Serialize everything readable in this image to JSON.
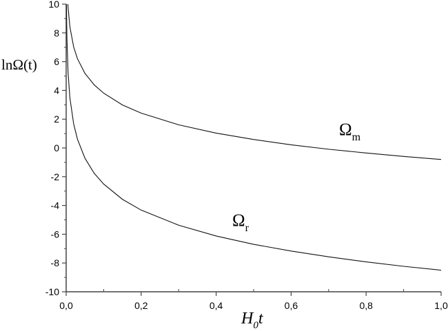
{
  "chart_data": {
    "type": "line",
    "title": "",
    "xlabel": "H0t",
    "xlabel_main": "H",
    "xlabel_sub": "0",
    "xlabel_tail": "t",
    "ylabel": "lnΩ(t)",
    "xlim": [
      0,
      1
    ],
    "ylim": [
      -10,
      10
    ],
    "x_ticks": [
      0,
      0.2,
      0.4,
      0.6,
      0.8,
      1.0
    ],
    "x_tick_labels": [
      "0,0",
      "0,2",
      "0,4",
      "0,6",
      "0,8",
      "1,0"
    ],
    "y_ticks": [
      -10,
      -8,
      -6,
      -4,
      -2,
      0,
      2,
      4,
      6,
      8,
      10
    ],
    "y_tick_labels": [
      "-10",
      "-8",
      "-6",
      "-4",
      "-2",
      "0",
      "2",
      "4",
      "6",
      "8",
      "10"
    ],
    "grid": false,
    "series": [
      {
        "name": "Ωm",
        "label_main": "Ω",
        "label_sub": "m",
        "x": [
          0.0045,
          0.005,
          0.01,
          0.02,
          0.03,
          0.05,
          0.075,
          0.1,
          0.15,
          0.2,
          0.3,
          0.4,
          0.5,
          0.6,
          0.7,
          0.8,
          0.9,
          1.0
        ],
        "y": [
          10.0,
          9.8,
          8.41,
          7.02,
          6.21,
          5.19,
          4.38,
          3.81,
          2.99,
          2.42,
          1.61,
          1.03,
          0.59,
          0.22,
          -0.09,
          -0.35,
          -0.59,
          -0.8
        ]
      },
      {
        "name": "Ωr",
        "label_main": "Ω",
        "label_sub": "r",
        "x": [
          0.0008,
          0.001,
          0.002,
          0.005,
          0.01,
          0.02,
          0.03,
          0.05,
          0.075,
          0.1,
          0.15,
          0.2,
          0.3,
          0.4,
          0.5,
          0.6,
          0.7,
          0.8,
          0.9,
          1.0
        ],
        "y": [
          10.0,
          9.46,
          7.66,
          5.27,
          3.47,
          1.67,
          0.62,
          -0.71,
          -1.77,
          -2.51,
          -3.57,
          -4.32,
          -5.37,
          -6.12,
          -6.7,
          -7.17,
          -7.57,
          -7.92,
          -8.23,
          -8.5
        ]
      }
    ]
  }
}
